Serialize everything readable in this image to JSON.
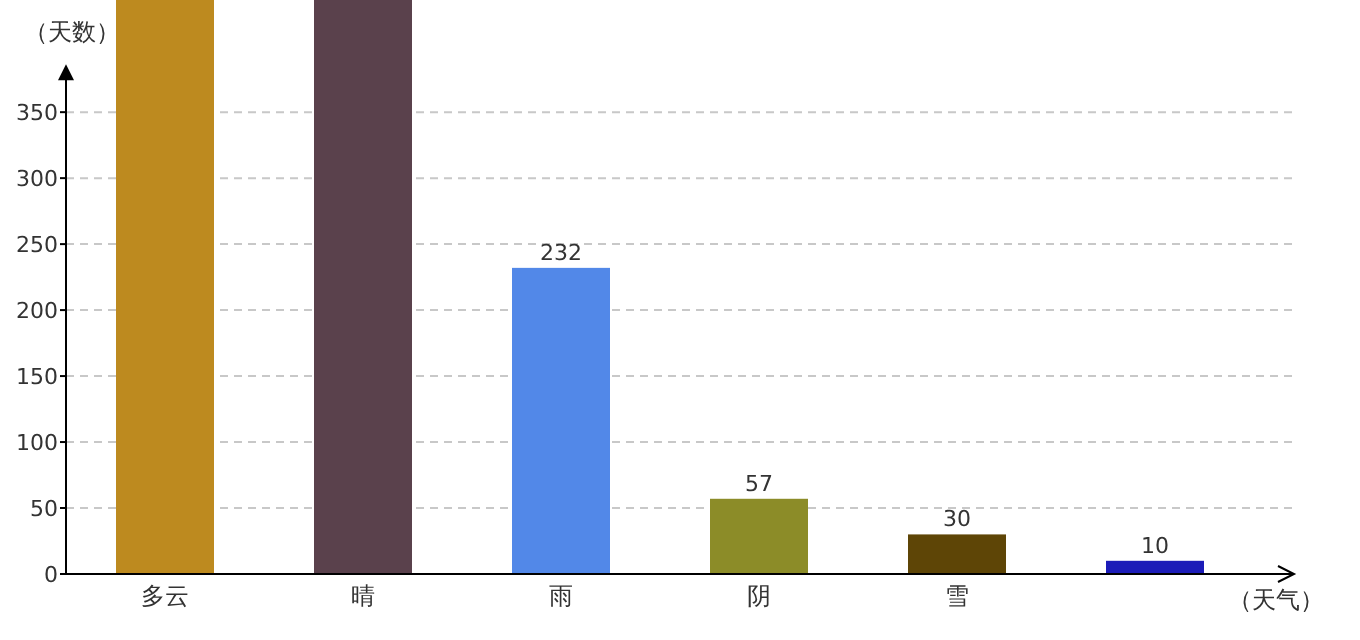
{
  "chart_data": {
    "type": "bar",
    "xlabel": "（天气）",
    "ylabel": "（天数）",
    "categories": [
      "多云",
      "晴",
      "雨",
      "阴",
      "雪",
      null
    ],
    "values": [
      435,
      435,
      232,
      57,
      30,
      10
    ],
    "colors": [
      "#bd8a1f",
      "#5a414c",
      "#5288e8",
      "#8c8c28",
      "#5e4506",
      "#1c1cb8"
    ],
    "ylim": [
      0,
      435
    ],
    "yticks": [
      0,
      50,
      100,
      150,
      200,
      250,
      300,
      350
    ],
    "value_labels": [
      null,
      null,
      "232",
      "57",
      "30",
      "10"
    ],
    "grid": "y"
  }
}
